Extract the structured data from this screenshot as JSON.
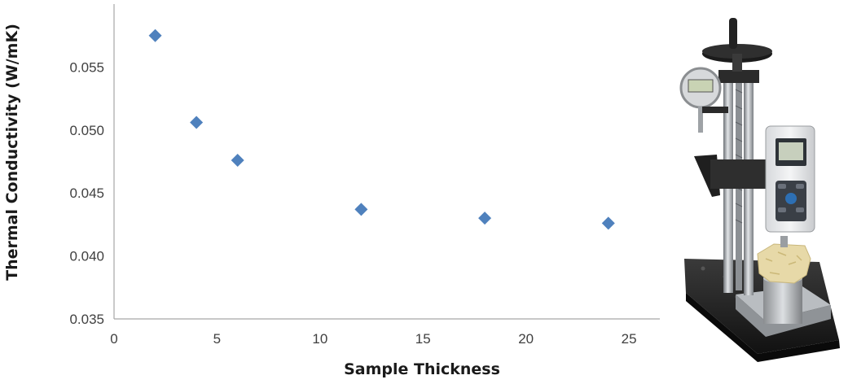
{
  "chart_data": {
    "type": "scatter",
    "title": "",
    "xlabel": "Sample Thickness",
    "ylabel": "Thermal Conductivity (W/mK)",
    "xlim": [
      0,
      26.5
    ],
    "ylim": [
      0.035,
      0.06
    ],
    "x_ticks": [
      0,
      5,
      10,
      15,
      20,
      25
    ],
    "y_ticks": [
      0.035,
      0.04,
      0.045,
      0.05,
      0.055
    ],
    "x_tick_labels": [
      "0",
      "5",
      "10",
      "15",
      "20",
      "25"
    ],
    "y_tick_labels": [
      "0.035",
      "0.040",
      "0.045",
      "0.050",
      "0.055"
    ],
    "grid": false,
    "legend": "none",
    "marker": "diamond",
    "marker_color": "#4f81bd",
    "series": [
      {
        "x": [
          2,
          4,
          6,
          12,
          18,
          24
        ],
        "y": [
          0.0575,
          0.0506,
          0.0476,
          0.0437,
          0.043,
          0.0426
        ]
      }
    ]
  },
  "photo": {
    "subject": "thermal-conductivity-test-stand",
    "colors": {
      "base": "#1c1c1c",
      "steel": "#b8bcc0",
      "gauge_screen": "#c9d3b4",
      "panel": "#e9eaec",
      "sample": "#e7d9a8"
    }
  }
}
